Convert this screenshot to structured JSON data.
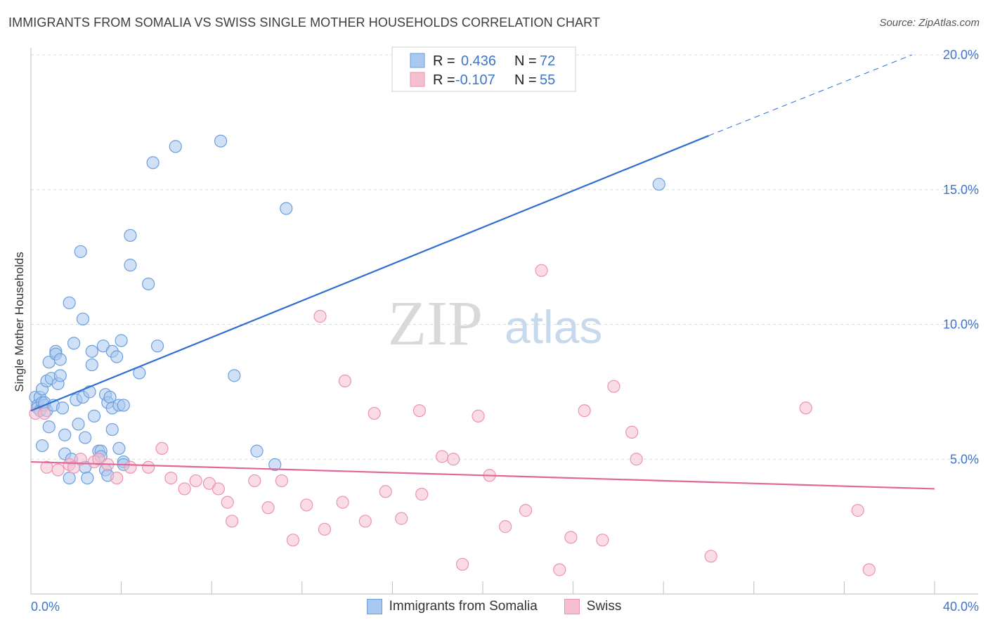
{
  "title": "IMMIGRANTS FROM SOMALIA VS SWISS SINGLE MOTHER HOUSEHOLDS CORRELATION CHART",
  "source": "Source: ZipAtlas.com",
  "watermark": {
    "part1": "ZIP",
    "part2": "atlas"
  },
  "legend": {
    "r_label": "R =",
    "n_label": "N =",
    "rows": [
      {
        "r": "0.436",
        "n": "72"
      },
      {
        "r": "-0.107",
        "n": "55"
      }
    ]
  },
  "colors": {
    "somalia_fill": "#a9c9f0",
    "somalia_stroke": "#6b9fdc",
    "somalia_line": "#2f6fcf",
    "swiss_fill": "#f6bfd0",
    "swiss_stroke": "#ec93b0",
    "swiss_line": "#e0679a",
    "grid": "#d8d8d8",
    "tick_label": "#3f74c9"
  },
  "chart_data": {
    "type": "scatter",
    "title": "IMMIGRANTS FROM SOMALIA VS SWISS SINGLE MOTHER HOUSEHOLDS CORRELATION CHART",
    "xlabel": "",
    "ylabel": "Single Mother Households",
    "xlim": [
      0,
      40
    ],
    "ylim": [
      0,
      20
    ],
    "x_tick_labels": [
      "0.0%",
      "40.0%"
    ],
    "y_ticks": [
      5,
      10,
      15,
      20
    ],
    "y_tick_labels": [
      "5.0%",
      "10.0%",
      "15.0%",
      "20.0%"
    ],
    "grid": true,
    "legend_position": "top-center",
    "series": [
      {
        "name": "Immigrants from Somalia",
        "r": 0.436,
        "n": 72,
        "trend": {
          "x0": 0.0,
          "y0": 6.8,
          "x1": 30.0,
          "y1": 17.0,
          "dashed_to_x": 39.0,
          "dashed_to_y": 20.0
        },
        "points": [
          [
            0.2,
            7.3
          ],
          [
            0.3,
            7.0
          ],
          [
            0.3,
            6.9
          ],
          [
            0.4,
            7.3
          ],
          [
            0.4,
            6.8
          ],
          [
            0.5,
            7.1
          ],
          [
            0.6,
            7.0
          ],
          [
            0.5,
            5.5
          ],
          [
            0.5,
            7.6
          ],
          [
            0.6,
            7.1
          ],
          [
            0.7,
            6.8
          ],
          [
            0.7,
            7.9
          ],
          [
            0.8,
            8.6
          ],
          [
            0.8,
            6.2
          ],
          [
            0.9,
            8.0
          ],
          [
            1.0,
            7.0
          ],
          [
            1.1,
            9.0
          ],
          [
            1.1,
            8.9
          ],
          [
            1.2,
            7.8
          ],
          [
            1.3,
            8.7
          ],
          [
            1.3,
            8.1
          ],
          [
            1.4,
            6.9
          ],
          [
            1.5,
            5.2
          ],
          [
            1.5,
            5.9
          ],
          [
            1.7,
            10.8
          ],
          [
            1.7,
            4.3
          ],
          [
            1.8,
            5.0
          ],
          [
            1.9,
            9.3
          ],
          [
            2.0,
            7.2
          ],
          [
            2.1,
            6.3
          ],
          [
            2.2,
            12.7
          ],
          [
            2.3,
            10.2
          ],
          [
            2.3,
            7.3
          ],
          [
            2.4,
            4.7
          ],
          [
            2.4,
            5.8
          ],
          [
            2.5,
            4.3
          ],
          [
            2.6,
            7.5
          ],
          [
            2.7,
            9.0
          ],
          [
            2.7,
            8.5
          ],
          [
            2.8,
            6.6
          ],
          [
            3.0,
            5.3
          ],
          [
            3.1,
            5.3
          ],
          [
            3.1,
            5.1
          ],
          [
            3.2,
            9.2
          ],
          [
            3.3,
            7.4
          ],
          [
            3.3,
            4.6
          ],
          [
            3.4,
            7.1
          ],
          [
            3.4,
            4.4
          ],
          [
            3.5,
            7.3
          ],
          [
            3.6,
            9.0
          ],
          [
            3.6,
            6.9
          ],
          [
            3.6,
            6.1
          ],
          [
            3.8,
            8.8
          ],
          [
            3.9,
            5.4
          ],
          [
            3.9,
            7.0
          ],
          [
            4.0,
            9.4
          ],
          [
            4.1,
            7.0
          ],
          [
            4.1,
            4.9
          ],
          [
            4.1,
            4.8
          ],
          [
            4.4,
            13.3
          ],
          [
            4.4,
            12.2
          ],
          [
            4.8,
            8.2
          ],
          [
            5.2,
            11.5
          ],
          [
            5.4,
            16.0
          ],
          [
            5.6,
            9.2
          ],
          [
            6.4,
            16.6
          ],
          [
            8.4,
            16.8
          ],
          [
            9.0,
            8.1
          ],
          [
            10.0,
            5.3
          ],
          [
            10.8,
            4.8
          ],
          [
            11.3,
            14.3
          ],
          [
            27.8,
            15.2
          ]
        ]
      },
      {
        "name": "Swiss",
        "r": -0.107,
        "n": 55,
        "trend": {
          "x0": 0.0,
          "y0": 4.9,
          "x1": 40.0,
          "y1": 3.9
        },
        "points": [
          [
            0.2,
            6.7
          ],
          [
            0.6,
            6.7
          ],
          [
            0.7,
            4.7
          ],
          [
            1.2,
            4.6
          ],
          [
            1.7,
            4.8
          ],
          [
            1.9,
            4.7
          ],
          [
            2.2,
            5.0
          ],
          [
            2.8,
            4.9
          ],
          [
            3.0,
            5.0
          ],
          [
            3.4,
            4.8
          ],
          [
            3.8,
            4.3
          ],
          [
            4.4,
            4.7
          ],
          [
            5.2,
            4.7
          ],
          [
            5.8,
            5.4
          ],
          [
            6.2,
            4.3
          ],
          [
            6.8,
            3.9
          ],
          [
            7.3,
            4.2
          ],
          [
            7.9,
            4.1
          ],
          [
            8.3,
            3.9
          ],
          [
            8.7,
            3.4
          ],
          [
            8.9,
            2.7
          ],
          [
            9.9,
            4.2
          ],
          [
            10.5,
            3.2
          ],
          [
            11.1,
            4.2
          ],
          [
            11.6,
            2.0
          ],
          [
            12.2,
            3.3
          ],
          [
            12.8,
            10.3
          ],
          [
            13.0,
            2.4
          ],
          [
            13.8,
            3.4
          ],
          [
            13.9,
            7.9
          ],
          [
            14.8,
            2.7
          ],
          [
            15.2,
            6.7
          ],
          [
            15.7,
            3.8
          ],
          [
            16.4,
            2.8
          ],
          [
            17.2,
            6.8
          ],
          [
            17.3,
            3.7
          ],
          [
            18.2,
            5.1
          ],
          [
            18.7,
            5.0
          ],
          [
            19.1,
            1.1
          ],
          [
            19.8,
            6.6
          ],
          [
            20.3,
            4.4
          ],
          [
            21.0,
            2.5
          ],
          [
            21.9,
            3.1
          ],
          [
            22.6,
            12.0
          ],
          [
            23.4,
            0.9
          ],
          [
            23.9,
            2.1
          ],
          [
            24.5,
            6.8
          ],
          [
            25.3,
            2.0
          ],
          [
            25.8,
            7.7
          ],
          [
            26.6,
            6.0
          ],
          [
            26.8,
            5.0
          ],
          [
            30.1,
            1.4
          ],
          [
            34.3,
            6.9
          ],
          [
            36.6,
            3.1
          ],
          [
            37.1,
            0.9
          ]
        ]
      }
    ]
  }
}
